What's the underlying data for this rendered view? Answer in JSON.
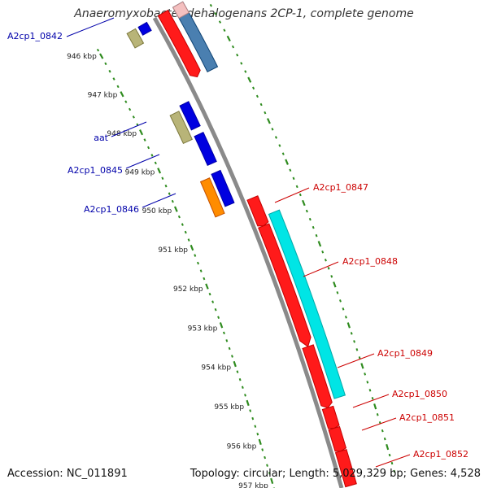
{
  "title": "Anaeromyxobacter dehalogenans 2CP-1, complete genome",
  "footer": {
    "accession": "Accession: NC_011891",
    "topology": "Topology: circular; Length: 5,029,329 bp; Genes: 4,528"
  },
  "colors": {
    "backbone": "#8a8a8a",
    "tick": "#2e8b1e",
    "plus_label": "#cc0000",
    "minus_label": "#0000aa"
  },
  "scale": {
    "labels": [
      "946 kbp",
      "947 kbp",
      "948 kbp",
      "949 kbp",
      "950 kbp",
      "951 kbp",
      "952 kbp",
      "953 kbp",
      "954 kbp",
      "955 kbp",
      "956 kbp",
      "957 kbp"
    ]
  },
  "genes_minus": [
    {
      "name": "A2cp1_0842",
      "show_label": true
    },
    {
      "name": "aat",
      "show_label": true
    },
    {
      "name": "A2cp1_0845",
      "show_label": true
    },
    {
      "name": "A2cp1_0846",
      "show_label": true
    }
  ],
  "genes_plus": [
    {
      "name": "A2cp1_0847"
    },
    {
      "name": "A2cp1_0848"
    },
    {
      "name": "A2cp1_0849"
    },
    {
      "name": "A2cp1_0850"
    },
    {
      "name": "A2cp1_0851"
    },
    {
      "name": "A2cp1_0852"
    }
  ]
}
